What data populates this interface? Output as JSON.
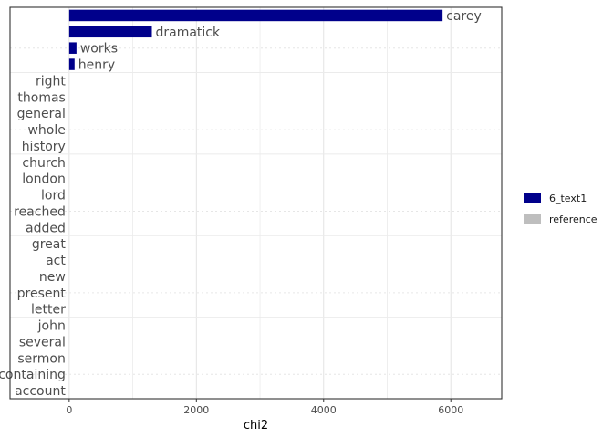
{
  "chart_data": {
    "type": "bar",
    "orientation": "horizontal",
    "xlabel": "chi2",
    "ylabel": "",
    "xlim": [
      -930,
      6800
    ],
    "x_ticks": [
      0,
      2000,
      4000,
      6000
    ],
    "x_tick_labels": [
      "0",
      "2000",
      "4000",
      "6000"
    ],
    "grid": true,
    "legend_position": "right",
    "categories": [
      "carey",
      "dramatick",
      "works",
      "henry",
      "right",
      "thomas",
      "general",
      "whole",
      "history",
      "church",
      "london",
      "lord",
      "reached",
      "added",
      "great",
      "act",
      "new",
      "present",
      "letter",
      "john",
      "several",
      "sermon",
      "containing",
      "account"
    ],
    "series": [
      {
        "name": "6_text1",
        "color": "#00008B",
        "values": [
          5870,
          1300,
          115,
          85,
          0,
          0,
          0,
          0,
          0,
          0,
          0,
          0,
          0,
          0,
          0,
          0,
          0,
          0,
          0,
          0,
          0,
          0,
          0,
          0
        ]
      },
      {
        "name": "reference",
        "color": "#BEBEBE",
        "values": [
          0,
          0,
          0,
          0,
          0,
          0,
          0,
          0,
          0,
          0,
          0,
          0,
          0,
          0,
          0,
          0,
          0,
          0,
          0,
          0,
          0,
          0,
          0,
          0
        ]
      }
    ]
  }
}
